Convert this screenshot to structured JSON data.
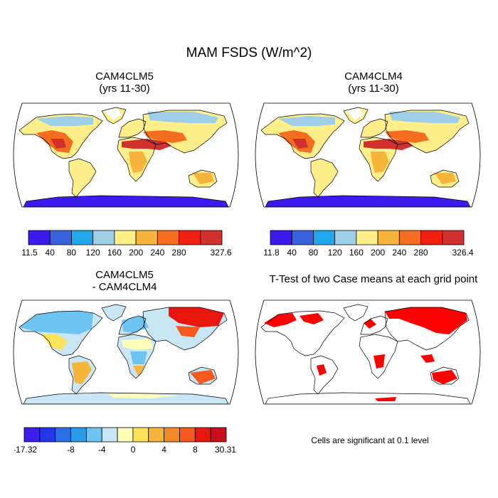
{
  "figure": {
    "title": "MAM FSDS (W/m^2)",
    "colors": {
      "outline": "#000000",
      "ocean": "#ffffff",
      "sig_color": "#ff0000"
    }
  },
  "panels": [
    {
      "id": "cam4clm5",
      "title_line1": "CAM4CLM5",
      "title_line2": "(yrs 11-30)",
      "colorbar": {
        "colors": [
          "#3b1aee",
          "#3a62dc",
          "#21a8ea",
          "#9fcfe8",
          "#ffef8a",
          "#f9b53b",
          "#f56d1f",
          "#f4200f",
          "#d22f2f"
        ],
        "labels": [
          "11.5",
          "40",
          "80",
          "120",
          "160",
          "200",
          "240",
          "280",
          "327.6"
        ]
      }
    },
    {
      "id": "cam4clm4",
      "title_line1": "CAM4CLM4",
      "title_line2": "(yrs 11-30)",
      "colorbar": {
        "colors": [
          "#3b1aee",
          "#3a62dc",
          "#21a8ea",
          "#9fcfe8",
          "#ffef8a",
          "#f9b53b",
          "#f56d1f",
          "#f4200f",
          "#d22f2f"
        ],
        "labels": [
          "11.8",
          "40",
          "80",
          "120",
          "160",
          "200",
          "240",
          "280",
          "326.4"
        ]
      }
    },
    {
      "id": "difference",
      "title_line1": "CAM4CLM5",
      "title_line2": "- CAM4CLM4",
      "colorbar": {
        "colors": [
          "#3a1fe9",
          "#2437e8",
          "#2a6fe4",
          "#2a9be6",
          "#6ec4f0",
          "#c9e6f5",
          "#ffffb8",
          "#fde35a",
          "#f7b53a",
          "#f4892a",
          "#f45a1e",
          "#e8160c",
          "#c80f1c"
        ],
        "labels": [
          "-17.32",
          "-8",
          "-4",
          "0",
          "4",
          "8",
          "30.31"
        ]
      }
    },
    {
      "id": "ttest",
      "title": "T-Test of two Case means at each grid point",
      "note": "Cells are significant at 0.1 level"
    }
  ],
  "chart_data": [
    {
      "type": "heatmap",
      "title": "CAM4CLM5 (yrs 11-30)",
      "variable": "MAM FSDS",
      "units": "W/m^2",
      "projection": "Robinson",
      "range": [
        11.5,
        327.6
      ],
      "contour_levels": [
        40,
        80,
        120,
        160,
        200,
        240,
        280
      ],
      "regions": [
        {
          "region": "Sahara / Arabia",
          "bin": "280-327.6"
        },
        {
          "region": "US Southwest / Mexico",
          "bin": "280-327.6"
        },
        {
          "region": "Amazon",
          "bin": "160-200"
        },
        {
          "region": "Southern Africa",
          "bin": "200-280"
        },
        {
          "region": "Australia",
          "bin": "200-280"
        },
        {
          "region": "Siberia / Canada",
          "bin": "120-200"
        },
        {
          "region": "Antarctica",
          "bin": "11.5-80"
        }
      ]
    },
    {
      "type": "heatmap",
      "title": "CAM4CLM4 (yrs 11-30)",
      "variable": "MAM FSDS",
      "units": "W/m^2",
      "projection": "Robinson",
      "range": [
        11.8,
        326.4
      ],
      "contour_levels": [
        40,
        80,
        120,
        160,
        200,
        240,
        280
      ]
    },
    {
      "type": "heatmap",
      "title": "CAM4CLM5 - CAM4CLM4",
      "variable": "MAM FSDS difference",
      "units": "W/m^2",
      "projection": "Robinson",
      "range": [
        -17.32,
        30.31
      ],
      "contour_levels": [
        -14,
        -12,
        -10,
        -8,
        -6,
        -4,
        -2,
        0,
        2,
        4,
        6,
        8
      ],
      "regions": [
        {
          "region": "Siberia",
          "bin": "positive (8-30.31)"
        },
        {
          "region": "Australia",
          "bin": "positive (4-8)"
        },
        {
          "region": "Canada / Europe",
          "bin": "negative (-4 to -2)"
        },
        {
          "region": "Central Africa",
          "bin": "negative (-2 to 0)"
        }
      ]
    },
    {
      "type": "heatmap",
      "title": "T-Test of two Case means at each grid point",
      "significance_level": 0.1,
      "significant_regions": [
        "Siberia",
        "Northern Canada",
        "Australia",
        "Central Africa",
        "Arctic Russia",
        "Indonesia",
        "Antarctic coast"
      ]
    }
  ]
}
